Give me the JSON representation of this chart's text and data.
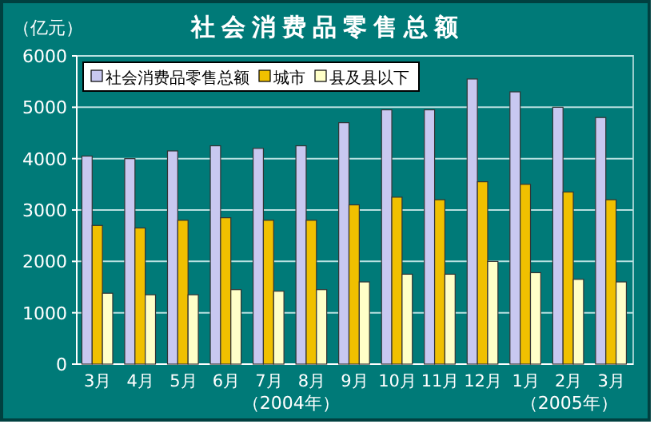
{
  "chart_data": {
    "type": "bar",
    "title": "社会消费品零售总额",
    "ylabel": "（亿元）",
    "categories": [
      "3月",
      "4月",
      "5月",
      "6月",
      "7月",
      "8月",
      "9月",
      "10月",
      "11月",
      "12月",
      "1月",
      "2月",
      "3月"
    ],
    "series": [
      {
        "name": "社会消费品零售总额",
        "color": "#c8c8f0",
        "values": [
          4050,
          4000,
          4150,
          4250,
          4200,
          4250,
          4700,
          4950,
          4950,
          5550,
          5300,
          5000,
          4800
        ]
      },
      {
        "name": "城市",
        "color": "#f0c000",
        "values": [
          2700,
          2650,
          2800,
          2850,
          2800,
          2800,
          3100,
          3250,
          3200,
          3550,
          3500,
          3350,
          3200
        ]
      },
      {
        "name": "县及县以下",
        "color": "#ffffc8",
        "values": [
          1380,
          1350,
          1350,
          1450,
          1420,
          1450,
          1600,
          1750,
          1750,
          2000,
          1780,
          1650,
          1600
        ]
      }
    ],
    "ylim": [
      0,
      6000
    ],
    "yticks": [
      0,
      1000,
      2000,
      3000,
      4000,
      5000,
      6000
    ],
    "grid": "y",
    "legend": "top left",
    "annotations": [
      "（2004年）",
      "（2005年）"
    ]
  }
}
